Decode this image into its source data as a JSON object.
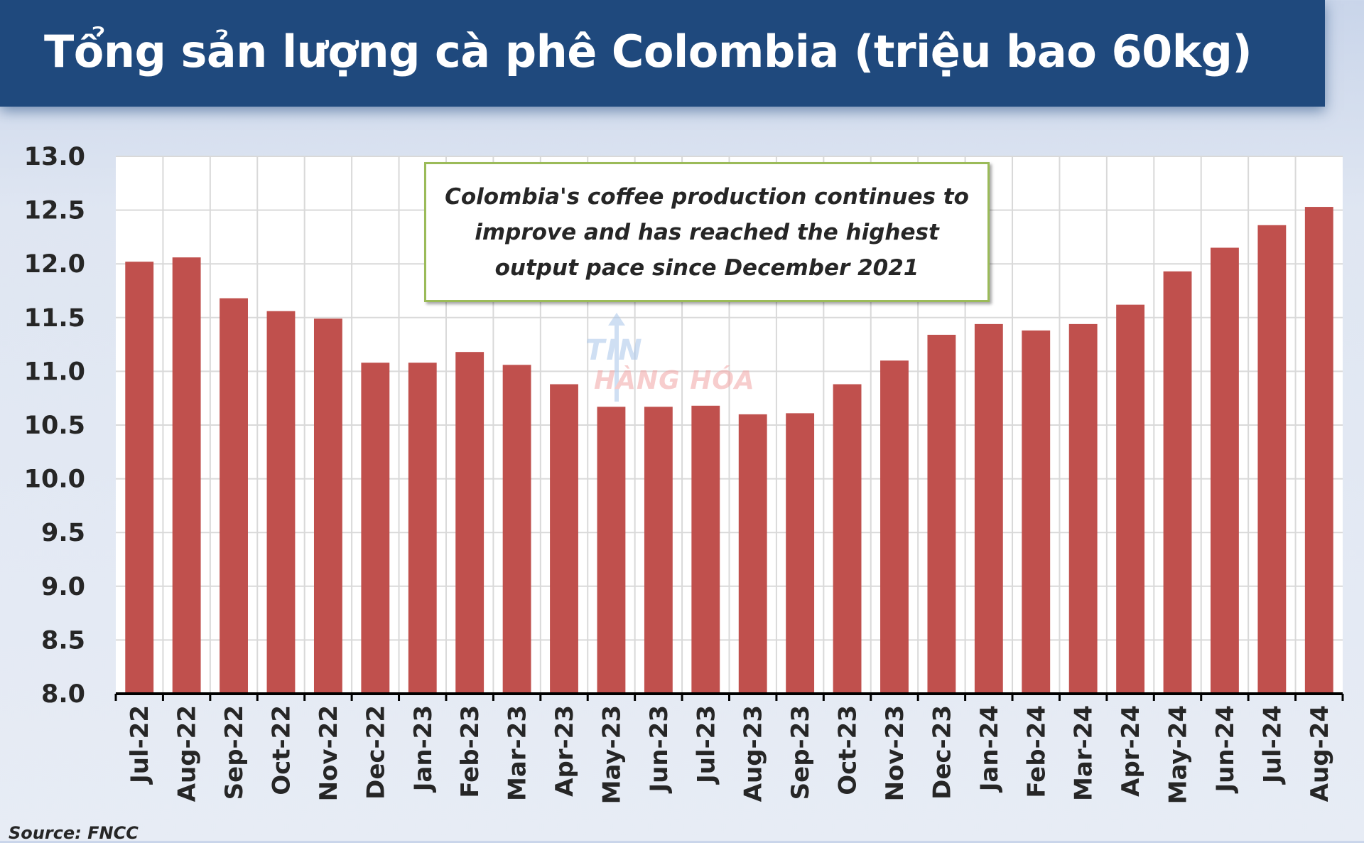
{
  "header": {
    "title": "Tổng sản lượng cà phê Colombia (triệu bao 60kg)"
  },
  "annotation": {
    "text": "Colombia's coffee production continues to improve and has reached the highest output pace since December 2021"
  },
  "watermark": {
    "line1": "TIN",
    "line2": "HÀNG HÓA"
  },
  "source": "Source: FNCC",
  "colors": {
    "header_bg": "#1f497d",
    "bar": "#c0504d",
    "callout_border": "#9bbb59",
    "grid": "#d9d9d9"
  },
  "chart_data": {
    "type": "bar",
    "title": "Tổng sản lượng cà phê Colombia (triệu bao 60kg)",
    "xlabel": "",
    "ylabel": "",
    "ylim": [
      8.0,
      13.0
    ],
    "yticks": [
      "8.0",
      "8.5",
      "9.0",
      "9.5",
      "10.0",
      "10.5",
      "11.0",
      "11.5",
      "12.0",
      "12.5",
      "13.0"
    ],
    "grid": true,
    "categories": [
      "Jul-22",
      "Aug-22",
      "Sep-22",
      "Oct-22",
      "Nov-22",
      "Dec-22",
      "Jan-23",
      "Feb-23",
      "Mar-23",
      "Apr-23",
      "May-23",
      "Jun-23",
      "Jul-23",
      "Aug-23",
      "Sep-23",
      "Oct-23",
      "Nov-23",
      "Dec-23",
      "Jan-24",
      "Feb-24",
      "Mar-24",
      "Apr-24",
      "May-24",
      "Jun-24",
      "Jul-24",
      "Aug-24"
    ],
    "values": [
      12.02,
      12.06,
      11.68,
      11.56,
      11.49,
      11.08,
      11.08,
      11.18,
      11.06,
      10.88,
      10.67,
      10.67,
      10.68,
      10.6,
      10.61,
      10.88,
      11.1,
      11.34,
      11.44,
      11.38,
      11.44,
      11.62,
      11.93,
      12.15,
      12.36,
      12.53
    ]
  }
}
